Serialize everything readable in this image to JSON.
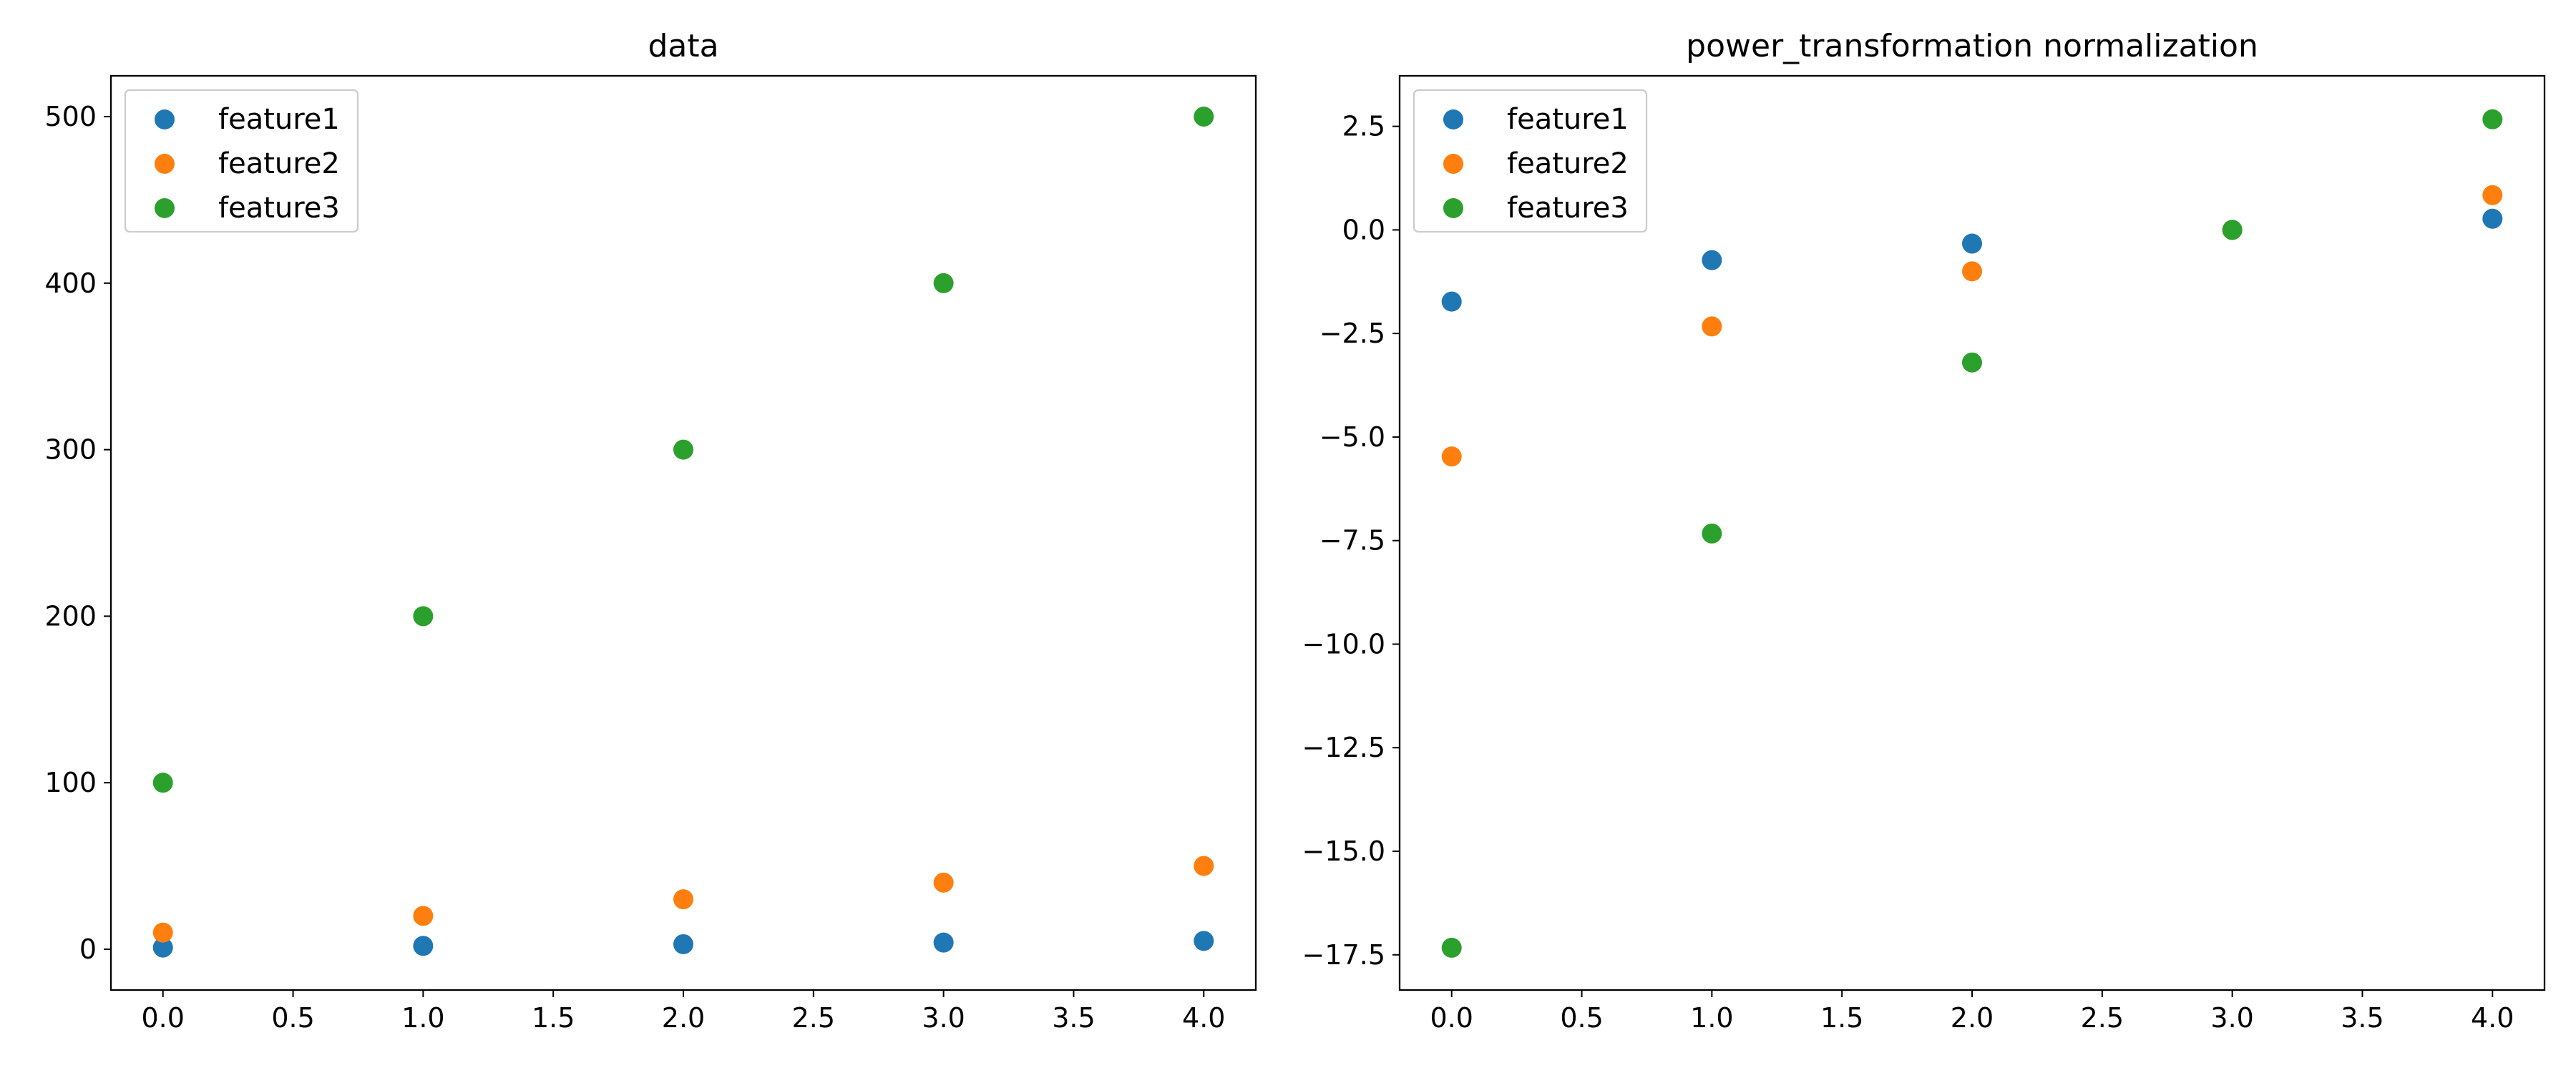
{
  "chart_data": [
    {
      "type": "scatter",
      "title": "data",
      "xlabel": "",
      "ylabel": "",
      "xlim": [
        -0.2,
        4.2
      ],
      "ylim": [
        -24.5,
        524.5
      ],
      "xticks": [
        0.0,
        0.5,
        1.0,
        1.5,
        2.0,
        2.5,
        3.0,
        3.5,
        4.0
      ],
      "xtick_labels": [
        "0.0",
        "0.5",
        "1.0",
        "1.5",
        "2.0",
        "2.5",
        "3.0",
        "3.5",
        "4.0"
      ],
      "yticks": [
        0,
        100,
        200,
        300,
        400,
        500
      ],
      "ytick_labels": [
        "0",
        "100",
        "200",
        "300",
        "400",
        "500"
      ],
      "grid": false,
      "legend_position": "upper-left",
      "series": [
        {
          "name": "feature1",
          "color": "#1f77b4",
          "x": [
            0,
            1,
            2,
            3,
            4
          ],
          "y": [
            1,
            2,
            3,
            4,
            5
          ]
        },
        {
          "name": "feature2",
          "color": "#ff7f0e",
          "x": [
            0,
            1,
            2,
            3,
            4
          ],
          "y": [
            10,
            20,
            30,
            40,
            50
          ]
        },
        {
          "name": "feature3",
          "color": "#2ca02c",
          "x": [
            0,
            1,
            2,
            3,
            4
          ],
          "y": [
            100,
            200,
            300,
            400,
            500
          ]
        }
      ]
    },
    {
      "type": "scatter",
      "title": "power_transformation normalization",
      "xlabel": "",
      "ylabel": "",
      "xlim": [
        -0.2,
        4.2
      ],
      "ylim": [
        -18.35,
        3.72
      ],
      "xticks": [
        0.0,
        0.5,
        1.0,
        1.5,
        2.0,
        2.5,
        3.0,
        3.5,
        4.0
      ],
      "xtick_labels": [
        "0.0",
        "0.5",
        "1.0",
        "1.5",
        "2.0",
        "2.5",
        "3.0",
        "3.5",
        "4.0"
      ],
      "yticks": [
        2.5,
        0.0,
        -2.5,
        -5.0,
        -7.5,
        -10.0,
        -12.5,
        -15.0,
        -17.5
      ],
      "ytick_labels": [
        "2.5",
        "0.0",
        "−2.5",
        "−5.0",
        "−7.5",
        "−10.0",
        "−12.5",
        "−15.0",
        "−17.5"
      ],
      "grid": false,
      "legend_position": "upper-left",
      "series": [
        {
          "name": "feature1",
          "color": "#1f77b4",
          "x": [
            0,
            1,
            2,
            3,
            4
          ],
          "y": [
            -1.73,
            -0.73,
            -0.33,
            0.0,
            0.27
          ]
        },
        {
          "name": "feature2",
          "color": "#ff7f0e",
          "x": [
            0,
            1,
            2,
            3,
            4
          ],
          "y": [
            -5.47,
            -2.33,
            -1.0,
            0.0,
            0.84
          ]
        },
        {
          "name": "feature3",
          "color": "#2ca02c",
          "x": [
            0,
            1,
            2,
            3,
            4
          ],
          "y": [
            -17.33,
            -7.33,
            -3.2,
            0.0,
            2.67
          ]
        }
      ]
    }
  ]
}
